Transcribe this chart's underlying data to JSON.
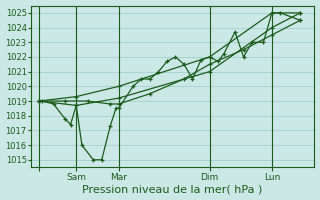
{
  "title": "",
  "xlabel": "Pression niveau de la mer( hPa )",
  "bg_color": "#cce8e6",
  "grid_color": "#99ccc8",
  "line_color": "#1a5c1a",
  "ylim": [
    1014.5,
    1025.5
  ],
  "yticks": [
    1015,
    1016,
    1017,
    1018,
    1019,
    1020,
    1021,
    1022,
    1023,
    1024,
    1025
  ],
  "xlim": [
    0,
    100
  ],
  "x_day_ticks": [
    3,
    16,
    31,
    63,
    85
  ],
  "x_day_labels": [
    "",
    "Sam",
    "Mar",
    "Dim",
    "Lun"
  ],
  "vlines": [
    3,
    16,
    31,
    63,
    85
  ],
  "series": [
    [
      3,
      1019,
      4,
      1019,
      8,
      1018.8,
      12,
      1017.8,
      14,
      1017.4,
      16,
      1018.7,
      18,
      1016.0,
      22,
      1015.0,
      25,
      1015.0,
      28,
      1017.3,
      30,
      1018.5,
      31,
      1018.5,
      36,
      1020.0,
      39,
      1020.5,
      42,
      1020.5,
      45,
      1021.0,
      48,
      1021.7,
      51,
      1022.0,
      54,
      1021.5,
      57,
      1020.5,
      60,
      1021.8,
      63,
      1022.0,
      66,
      1021.7,
      68,
      1022.2,
      72,
      1023.7,
      75,
      1022.0,
      78,
      1023.0,
      82,
      1023.0,
      85,
      1025.0,
      88,
      1025.0,
      95,
      1024.5
    ],
    [
      3,
      1019,
      12,
      1019.0,
      20,
      1019.0,
      28,
      1018.8,
      31,
      1018.8,
      42,
      1019.5,
      54,
      1020.5,
      63,
      1021.5,
      75,
      1022.5,
      85,
      1023.5,
      95,
      1024.5
    ],
    [
      3,
      1019,
      16,
      1018.7,
      31,
      1019.2,
      63,
      1021.0,
      85,
      1024.0,
      95,
      1025.0
    ],
    [
      3,
      1019,
      16,
      1019.3,
      31,
      1020.0,
      63,
      1022.0,
      85,
      1025.0,
      95,
      1025.0
    ]
  ],
  "ytick_fontsize": 6,
  "xtick_fontsize": 6.5,
  "xlabel_fontsize": 8
}
